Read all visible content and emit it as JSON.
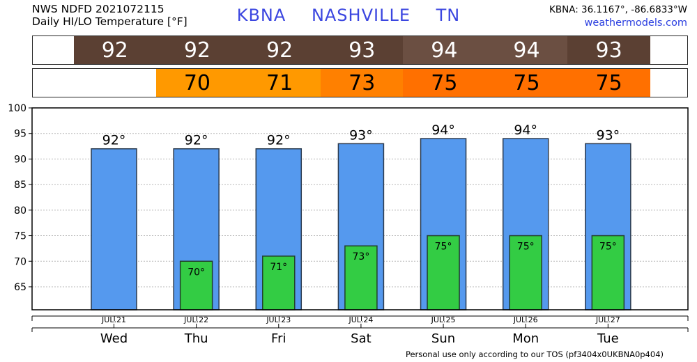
{
  "header": {
    "line1": "NWS NDFD 2021072115",
    "line2": "Daily HI/LO Temperature [°F]",
    "station": "KBNA",
    "city": "NASHVILLE",
    "state": "TN",
    "coords": "KBNA: 36.1167°, -86.6833°W",
    "site": "weathermodels.com"
  },
  "footer": "Personal use only according to our TOS (pf3404x0UKBNA0p404)",
  "colors": {
    "high_bar": "#5599ee",
    "low_bar": "#33cc44",
    "hi_strip": [
      "#5b4033",
      "#5b4033",
      "#5b4033",
      "#5b4033",
      "#6b4f42",
      "#6b4f42",
      "#5b4033"
    ],
    "lo_strip": [
      null,
      "#ff9900",
      "#ff9900",
      "#ff8000",
      "#ff7000",
      "#ff7000",
      "#ff7000"
    ]
  },
  "chart_data": {
    "type": "bar",
    "categories": [
      "Wed",
      "Thu",
      "Fri",
      "Sat",
      "Sun",
      "Mon",
      "Tue"
    ],
    "dates": [
      "JUL.21",
      "JUL.22",
      "JUL.23",
      "JUL.24",
      "JUL.25",
      "JUL.26",
      "JUL.27"
    ],
    "series": [
      {
        "values": [
          92,
          92,
          92,
          93,
          94,
          94,
          93
        ]
      },
      {
        "values": [
          null,
          70,
          71,
          73,
          75,
          75,
          75
        ]
      }
    ],
    "hi_labels": [
      "92°",
      "92°",
      "92°",
      "93°",
      "94°",
      "94°",
      "93°"
    ],
    "lo_labels": [
      "",
      "70°",
      "71°",
      "73°",
      "75°",
      "75°",
      "75°"
    ],
    "yticks": [
      "65",
      "70",
      "75",
      "80",
      "85",
      "90",
      "95",
      "100"
    ],
    "ylim": [
      60.5,
      100
    ],
    "grid": true
  }
}
